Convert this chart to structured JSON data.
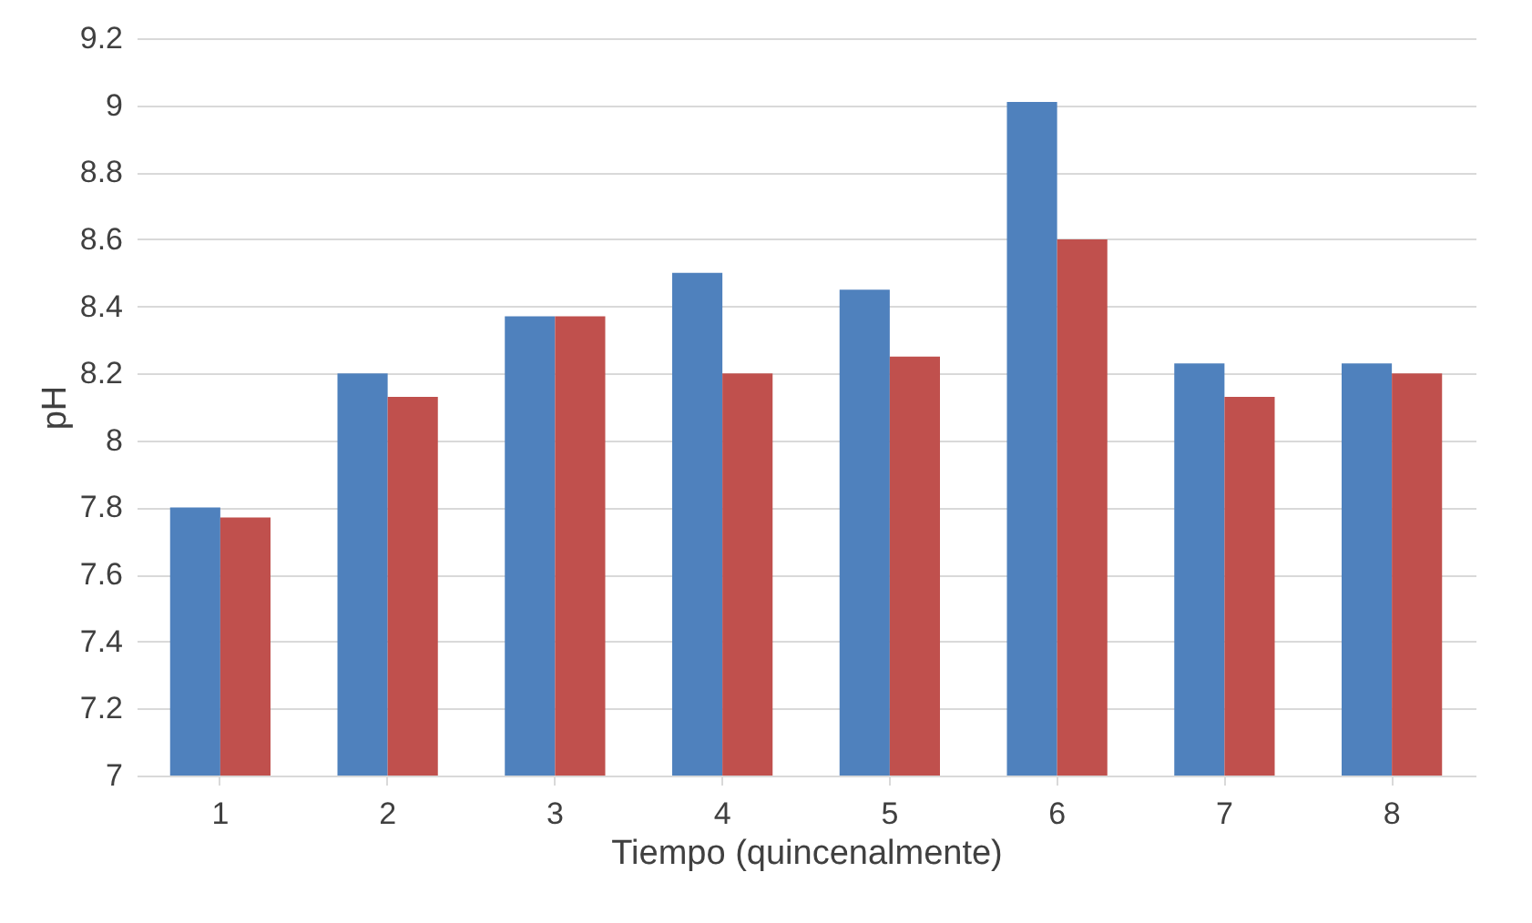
{
  "chart_data": {
    "type": "bar",
    "xlabel": "Tiempo (quincenalmente)",
    "ylabel": "pH",
    "categories": [
      "1",
      "2",
      "3",
      "4",
      "5",
      "6",
      "7",
      "8"
    ],
    "series": [
      {
        "color": "#4f81bd",
        "values": [
          7.8,
          8.2,
          8.37,
          8.5,
          8.45,
          9.01,
          8.23,
          8.23
        ]
      },
      {
        "color": "#c0504d",
        "values": [
          7.77,
          8.13,
          8.37,
          8.2,
          8.25,
          8.6,
          8.13,
          8.2
        ]
      }
    ],
    "ylim": [
      7,
      9.2
    ],
    "yticks": [
      7,
      7.2,
      7.4,
      7.6,
      7.8,
      8,
      8.2,
      8.4,
      8.6,
      8.8,
      9,
      9.2
    ],
    "grid": "y"
  }
}
